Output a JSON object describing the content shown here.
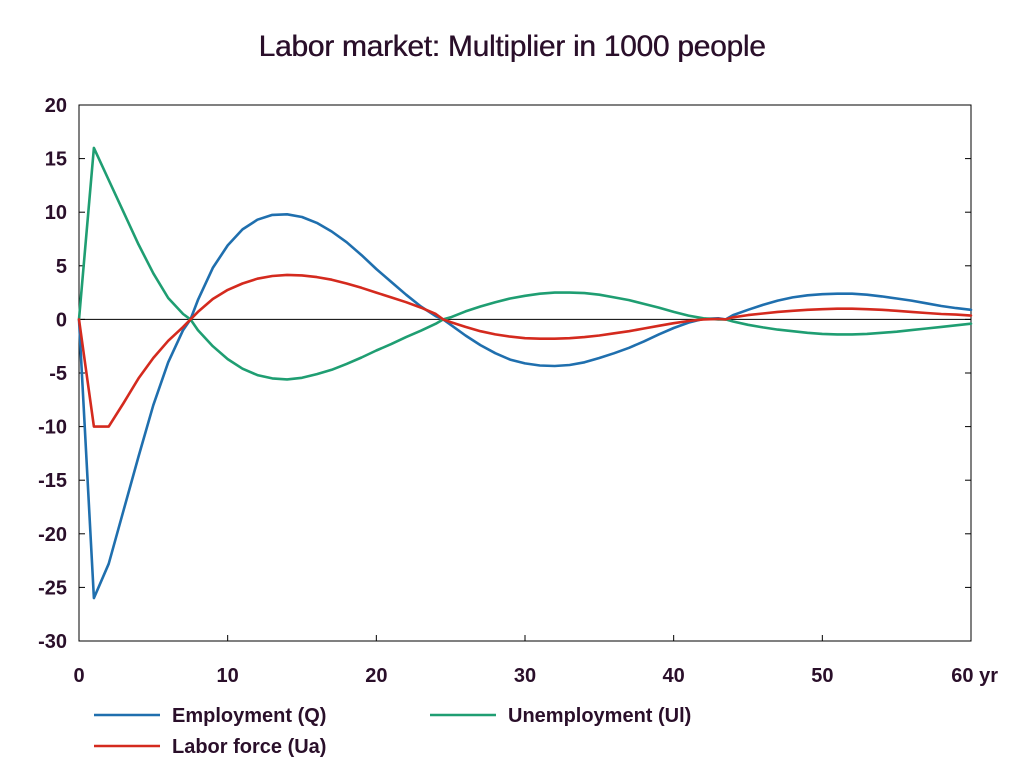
{
  "chart_data": {
    "type": "line",
    "title": "Labor market: Multiplier in 1000 people",
    "xlabel": "",
    "ylabel": "",
    "x_unit_label": "yr",
    "xlim": [
      0,
      60
    ],
    "ylim": [
      -30,
      20
    ],
    "x_ticks": [
      0,
      10,
      20,
      30,
      40,
      50,
      60
    ],
    "y_ticks": [
      20,
      15,
      10,
      5,
      0,
      -5,
      -10,
      -15,
      -20,
      -25,
      -30
    ],
    "grid": false,
    "legend_position": "bottom-left",
    "series": [
      {
        "name": "Employment (Q)",
        "color": "#1f6fae",
        "x": [
          0,
          1,
          2,
          3,
          4,
          5,
          6,
          7,
          7.5,
          8,
          9,
          10,
          11,
          12,
          13,
          14,
          15,
          16,
          17,
          18,
          19,
          20,
          21,
          22,
          23,
          24,
          24.5,
          25,
          26,
          27,
          28,
          29,
          30,
          31,
          32,
          33,
          34,
          35,
          36,
          37,
          38,
          39,
          40,
          41,
          42,
          43,
          43.5,
          44,
          45,
          46,
          47,
          48,
          49,
          50,
          51,
          52,
          53,
          54,
          55,
          56,
          57,
          58,
          59,
          60
        ],
        "values": [
          0,
          -26,
          -22.8,
          -17.8,
          -12.8,
          -8,
          -4,
          -1,
          0,
          1.8,
          4.8,
          6.9,
          8.4,
          9.3,
          9.75,
          9.8,
          9.55,
          9.0,
          8.2,
          7.2,
          6.0,
          4.7,
          3.5,
          2.3,
          1.2,
          0.3,
          0,
          -0.5,
          -1.5,
          -2.4,
          -3.15,
          -3.75,
          -4.1,
          -4.3,
          -4.35,
          -4.25,
          -4.0,
          -3.6,
          -3.15,
          -2.65,
          -2.05,
          -1.4,
          -0.8,
          -0.3,
          0.05,
          0.1,
          0,
          0.4,
          0.9,
          1.35,
          1.75,
          2.05,
          2.25,
          2.35,
          2.4,
          2.4,
          2.3,
          2.15,
          1.95,
          1.75,
          1.5,
          1.25,
          1.05,
          0.9
        ]
      },
      {
        "name": "Unemployment (Ul)",
        "color": "#1f9e72",
        "x": [
          0,
          1,
          2,
          3,
          4,
          5,
          6,
          7,
          7.5,
          8,
          9,
          10,
          11,
          12,
          13,
          14,
          15,
          16,
          17,
          18,
          19,
          20,
          21,
          22,
          23,
          24,
          24.5,
          25,
          26,
          27,
          28,
          29,
          30,
          31,
          32,
          33,
          34,
          35,
          36,
          37,
          38,
          39,
          40,
          41,
          42,
          43,
          43.5,
          44,
          45,
          46,
          47,
          48,
          49,
          50,
          51,
          52,
          53,
          54,
          55,
          56,
          57,
          58,
          59,
          60
        ],
        "values": [
          0,
          16,
          13,
          10,
          7,
          4.3,
          2.0,
          0.5,
          0,
          -1.0,
          -2.5,
          -3.7,
          -4.6,
          -5.2,
          -5.5,
          -5.6,
          -5.45,
          -5.1,
          -4.7,
          -4.15,
          -3.55,
          -2.9,
          -2.3,
          -1.65,
          -1.05,
          -0.4,
          0,
          0.2,
          0.75,
          1.2,
          1.6,
          1.95,
          2.2,
          2.4,
          2.5,
          2.5,
          2.45,
          2.3,
          2.05,
          1.8,
          1.45,
          1.1,
          0.7,
          0.35,
          0.1,
          0.0,
          0,
          -0.2,
          -0.5,
          -0.75,
          -0.95,
          -1.1,
          -1.25,
          -1.35,
          -1.4,
          -1.4,
          -1.35,
          -1.25,
          -1.15,
          -1.0,
          -0.85,
          -0.7,
          -0.55,
          -0.4
        ]
      },
      {
        "name": "Labor force (Ua)",
        "color": "#d42a1e",
        "x": [
          0,
          1,
          2,
          3,
          4,
          5,
          6,
          7,
          7.5,
          8,
          9,
          10,
          11,
          12,
          13,
          14,
          15,
          16,
          17,
          18,
          19,
          20,
          21,
          22,
          23,
          24,
          24.5,
          25,
          26,
          27,
          28,
          29,
          30,
          31,
          32,
          33,
          34,
          35,
          36,
          37,
          38,
          39,
          40,
          41,
          42,
          43,
          43.5,
          44,
          45,
          46,
          47,
          48,
          49,
          50,
          51,
          52,
          53,
          54,
          55,
          56,
          57,
          58,
          59,
          60
        ],
        "values": [
          0,
          -10,
          -10,
          -7.8,
          -5.5,
          -3.6,
          -2.0,
          -0.7,
          0,
          0.7,
          1.9,
          2.75,
          3.35,
          3.8,
          4.05,
          4.15,
          4.1,
          3.95,
          3.7,
          3.35,
          2.95,
          2.5,
          2.05,
          1.6,
          1.1,
          0.5,
          0,
          -0.25,
          -0.7,
          -1.1,
          -1.4,
          -1.6,
          -1.75,
          -1.8,
          -1.8,
          -1.75,
          -1.65,
          -1.5,
          -1.3,
          -1.1,
          -0.85,
          -0.6,
          -0.35,
          -0.15,
          0.0,
          0.05,
          0,
          0.2,
          0.4,
          0.55,
          0.7,
          0.8,
          0.9,
          0.95,
          1.0,
          1.0,
          0.95,
          0.9,
          0.8,
          0.7,
          0.6,
          0.5,
          0.45,
          0.35
        ]
      }
    ]
  }
}
